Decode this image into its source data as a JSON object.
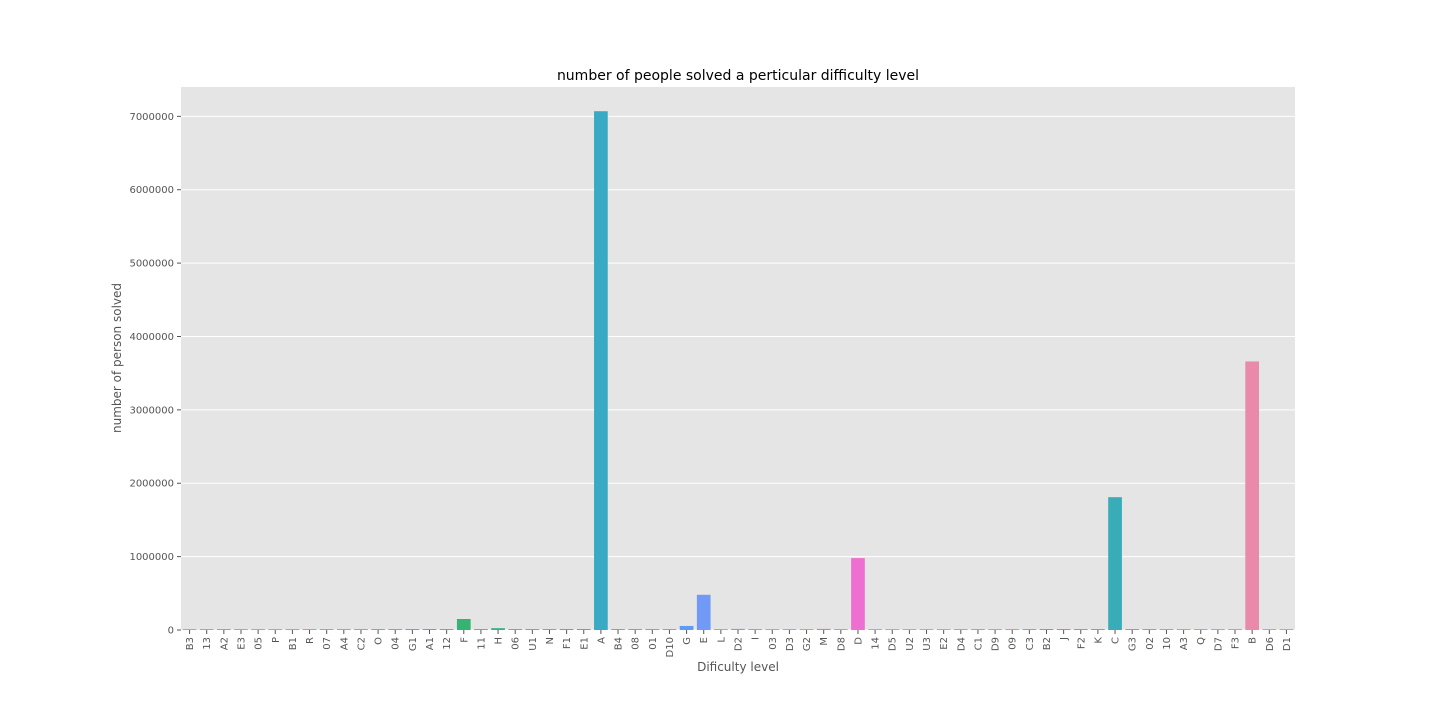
{
  "chart_data": {
    "type": "bar",
    "title": "number of people solved a perticular difficulty level",
    "xlabel": "Dificulty level",
    "ylabel": "number of person solved",
    "ylim": [
      0,
      7400000
    ],
    "yticks": [
      0,
      1000000,
      2000000,
      3000000,
      4000000,
      5000000,
      6000000,
      7000000
    ],
    "ytick_labels": [
      "0",
      "1000000",
      "2000000",
      "3000000",
      "4000000",
      "5000000",
      "6000000",
      "7000000"
    ],
    "grid": true,
    "categories": [
      "B3",
      "13",
      "A2",
      "E3",
      "05",
      "P",
      "B1",
      "R",
      "07",
      "A4",
      "C2",
      "O",
      "04",
      "G1",
      "A1",
      "12",
      "F",
      "11",
      "H",
      "06",
      "U1",
      "N",
      "F1",
      "E1",
      "A",
      "B4",
      "08",
      "01",
      "D10",
      "G",
      "E",
      "L",
      "D2",
      "I",
      "03",
      "D3",
      "G2",
      "M",
      "D8",
      "D",
      "14",
      "D5",
      "U2",
      "U3",
      "E2",
      "D4",
      "C1",
      "D9",
      "09",
      "C3",
      "B2",
      "J",
      "F2",
      "K",
      "C",
      "G3",
      "02",
      "10",
      "A3",
      "Q",
      "D7",
      "F3",
      "B",
      "D6",
      "D1"
    ],
    "values": [
      1000,
      2000,
      12000,
      1500,
      800,
      1200,
      9000,
      1500,
      1000,
      1200,
      800,
      1500,
      700,
      1000,
      10000,
      1000,
      150000,
      2000,
      25000,
      1000,
      700,
      1500,
      12000,
      12000,
      7070000,
      1000,
      700,
      800,
      1000,
      55000,
      480000,
      1500,
      15000,
      12000,
      1000,
      1000,
      800,
      15000,
      1500,
      980000,
      900,
      1000,
      800,
      1000,
      900,
      1200,
      8000,
      1000,
      700,
      1000,
      2000,
      6000,
      1500,
      8000,
      1810000,
      1000,
      800,
      1000,
      1200,
      800,
      1000,
      1200,
      3660000,
      1000,
      8000
    ],
    "colors": [
      "#f77189",
      "#f7745b",
      "#f27f35",
      "#e28a31",
      "#d39332",
      "#c69a32",
      "#ba9e32",
      "#af9f31",
      "#a4a431",
      "#97a830",
      "#8aab30",
      "#7aae31",
      "#66b230",
      "#4ab532",
      "#33b546",
      "#34b465",
      "#35b373",
      "#35b27f",
      "#35b18b",
      "#36b095",
      "#36af9f",
      "#37aea9",
      "#37adb1",
      "#38acba",
      "#39aac3",
      "#3aa8cc",
      "#3ba5d5",
      "#3fa3df",
      "#4ca0ea",
      "#5c9cf3",
      "#719af7",
      "#8495f6",
      "#9690f5",
      "#a48af3",
      "#b285f1",
      "#bf7ef0",
      "#cc77ee",
      "#d970e6",
      "#e46cdc",
      "#ed6fcf",
      "#f272c4",
      "#f574b8",
      "#f774ac",
      "#f7769f",
      "#f77891",
      "#f77189",
      "#e9833a",
      "#c4a034",
      "#a5a732",
      "#7ead31",
      "#32b45a",
      "#34b37b",
      "#35b193",
      "#36afa6",
      "#38adb8",
      "#3aa8cc",
      "#47a1e6",
      "#6e9bf5",
      "#9291f5",
      "#b085f2",
      "#cb77ef",
      "#e06dde",
      "#e98aab",
      "#f472be",
      "#f6769e"
    ]
  }
}
